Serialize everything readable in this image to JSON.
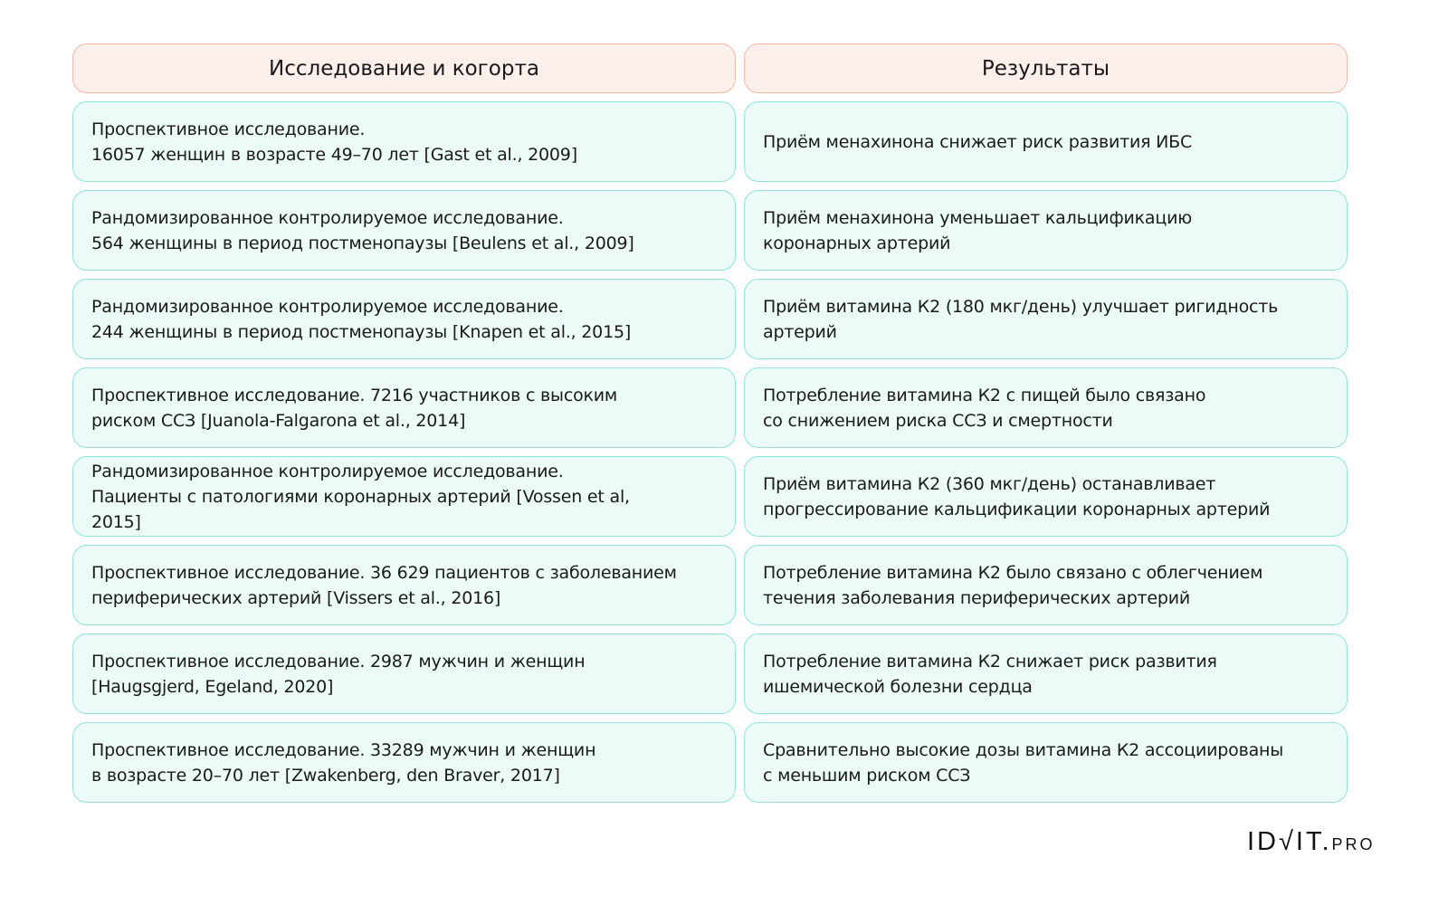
{
  "headers": [
    "Исследование и когорта",
    "Результаты"
  ],
  "rows": [
    {
      "study": "Проспективное исследование.\n16057 женщин в возрасте 49–70 лет [Gast et al., 2009]",
      "result": "Приём менахинона снижает риск развития ИБС"
    },
    {
      "study": "Рандомизированное контролируемое исследование.\n564 женщины в период постменопаузы [Beulens et al., 2009]",
      "result": "Приём менахинона уменьшает кальцификацию\nкоронарных артерий"
    },
    {
      "study": "Рандомизированное контролируемое исследование.\n244 женщины в период постменопаузы [Knapen et al., 2015]",
      "result": "Приём витамина К2 (180 мкг/день) улучшает ригидность\nартерий"
    },
    {
      "study": "Проспективное исследование. 7216 участников с высоким\nриском ССЗ [Juanola-Falgarona et al., 2014]",
      "result": "Потребление витамина К2 с пищей было связано\nсо снижением риска ССЗ и смертности"
    },
    {
      "study": "Рандомизированное контролируемое исследование.\nПациенты с патологиями коронарных артерий [Vossen et al,\n2015]",
      "result": "Приём витамина К2 (360 мкг/день) останавливает\nпрогрессирование кальцификации коронарных артерий"
    },
    {
      "study": "Проспективное исследование. 36 629 пациентов с заболеванием\nпериферических артерий [Vissers et al., 2016]",
      "result": "Потребление витамина К2 было связано с облегчением\nтечения заболевания периферических артерий"
    },
    {
      "study": "Проспективное исследование. 2987 мужчин и женщин\n[Haugsgjerd, Egeland, 2020]",
      "result": "Потребление витамина К2 снижает риск развития\nишемической болезни сердца"
    },
    {
      "study": "Проспективное исследование. 33289 мужчин и женщин\nв возрасте 20–70 лет [Zwakenberg, den Braver, 2017]",
      "result": "Сравнительно высокие дозы витамина К2 ассоциированы\nс меньшим риском ССЗ"
    }
  ],
  "logo": {
    "main": "ID√IT.",
    "suffix": "PRO"
  },
  "colors": {
    "header_bg": "#fdefec",
    "header_border": "#f6b7a3",
    "cell_bg": "#ecfbf8",
    "cell_border": "#8fe3da"
  }
}
